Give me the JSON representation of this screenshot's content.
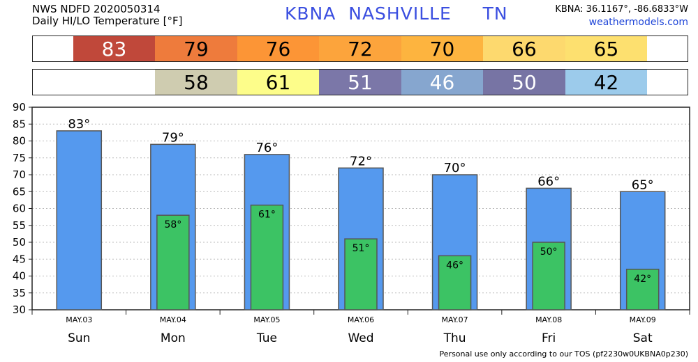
{
  "header": {
    "product": "NWS NDFD 2020050314",
    "subtitle": "Daily HI/LO Temperature [°F]",
    "station": "KBNA  NASHVILLE     TN",
    "coords": "KBNA: 36.1167°, -86.6833°W",
    "site": "weathermodels.com"
  },
  "hi_strip": [
    {
      "value": "83",
      "color": "#c0483a",
      "text_color": "#ffffff"
    },
    {
      "value": "79",
      "color": "#ee7b3c",
      "text_color": "#000000"
    },
    {
      "value": "76",
      "color": "#fc9536",
      "text_color": "#000000"
    },
    {
      "value": "72",
      "color": "#fca43c",
      "text_color": "#000000"
    },
    {
      "value": "70",
      "color": "#fdb43f",
      "text_color": "#000000"
    },
    {
      "value": "66",
      "color": "#fdd96e",
      "text_color": "#000000"
    },
    {
      "value": "65",
      "color": "#fde06f",
      "text_color": "#000000"
    }
  ],
  "lo_strip": [
    {
      "value": "",
      "color": "#ffffff",
      "text_color": "#000000"
    },
    {
      "value": "58",
      "color": "#cfccb0",
      "text_color": "#000000"
    },
    {
      "value": "61",
      "color": "#fdfd8a",
      "text_color": "#000000"
    },
    {
      "value": "51",
      "color": "#7b77a8",
      "text_color": "#ffffff"
    },
    {
      "value": "46",
      "color": "#86a6cf",
      "text_color": "#ffffff"
    },
    {
      "value": "50",
      "color": "#7774a4",
      "text_color": "#ffffff"
    },
    {
      "value": "42",
      "color": "#9ccbeb",
      "text_color": "#000000"
    }
  ],
  "chart_data": {
    "type": "bar",
    "categories": [
      "Sun",
      "Mon",
      "Tue",
      "Wed",
      "Thu",
      "Fri",
      "Sat"
    ],
    "dates": [
      "MAY.03",
      "MAY.04",
      "MAY.05",
      "MAY.06",
      "MAY.07",
      "MAY.08",
      "MAY.09"
    ],
    "series": [
      {
        "values": [
          83,
          79,
          76,
          72,
          70,
          66,
          65
        ],
        "color": "#5599ee"
      },
      {
        "values": [
          null,
          58,
          61,
          51,
          46,
          50,
          42
        ],
        "color": "#3cc364"
      }
    ],
    "hi_labels": [
      "83°",
      "79°",
      "76°",
      "72°",
      "70°",
      "66°",
      "65°"
    ],
    "lo_labels": [
      "",
      "58°",
      "61°",
      "51°",
      "46°",
      "50°",
      "42°"
    ],
    "ylim": [
      30,
      90
    ],
    "yticks": [
      30,
      35,
      40,
      45,
      50,
      55,
      60,
      65,
      70,
      75,
      80,
      85,
      90
    ],
    "grid": true
  },
  "footer": "Personal use only according to our TOS (pf2230w0UKBNA0p230)"
}
